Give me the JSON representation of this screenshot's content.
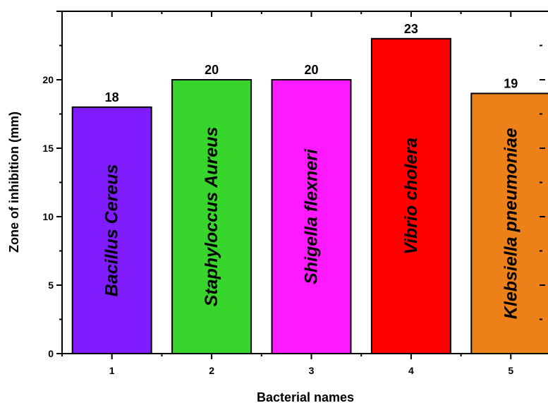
{
  "chart_data": {
    "type": "bar",
    "xlabel": "Bacterial names",
    "ylabel": "Zone of inhibition (mm)",
    "categories": [
      "1",
      "2",
      "3",
      "4",
      "5"
    ],
    "bar_names": [
      "Bacillus Cereus",
      "Staphyloccus Aureus",
      "Shigella flexneri",
      "Vibrio cholera",
      "Klebsiella pneumoniae"
    ],
    "values": [
      18,
      20,
      20,
      23,
      19
    ],
    "data_labels": [
      "18",
      "20",
      "20",
      "23",
      "19"
    ],
    "colors": [
      "#7f1dff",
      "#38d62c",
      "#ff1aff",
      "#ff0000",
      "#ec8119"
    ],
    "yticks": [
      "0",
      "5",
      "10",
      "15",
      "20"
    ],
    "ylim": [
      0,
      25
    ],
    "xlim": [
      0.5,
      5.5
    ],
    "grid": false
  }
}
